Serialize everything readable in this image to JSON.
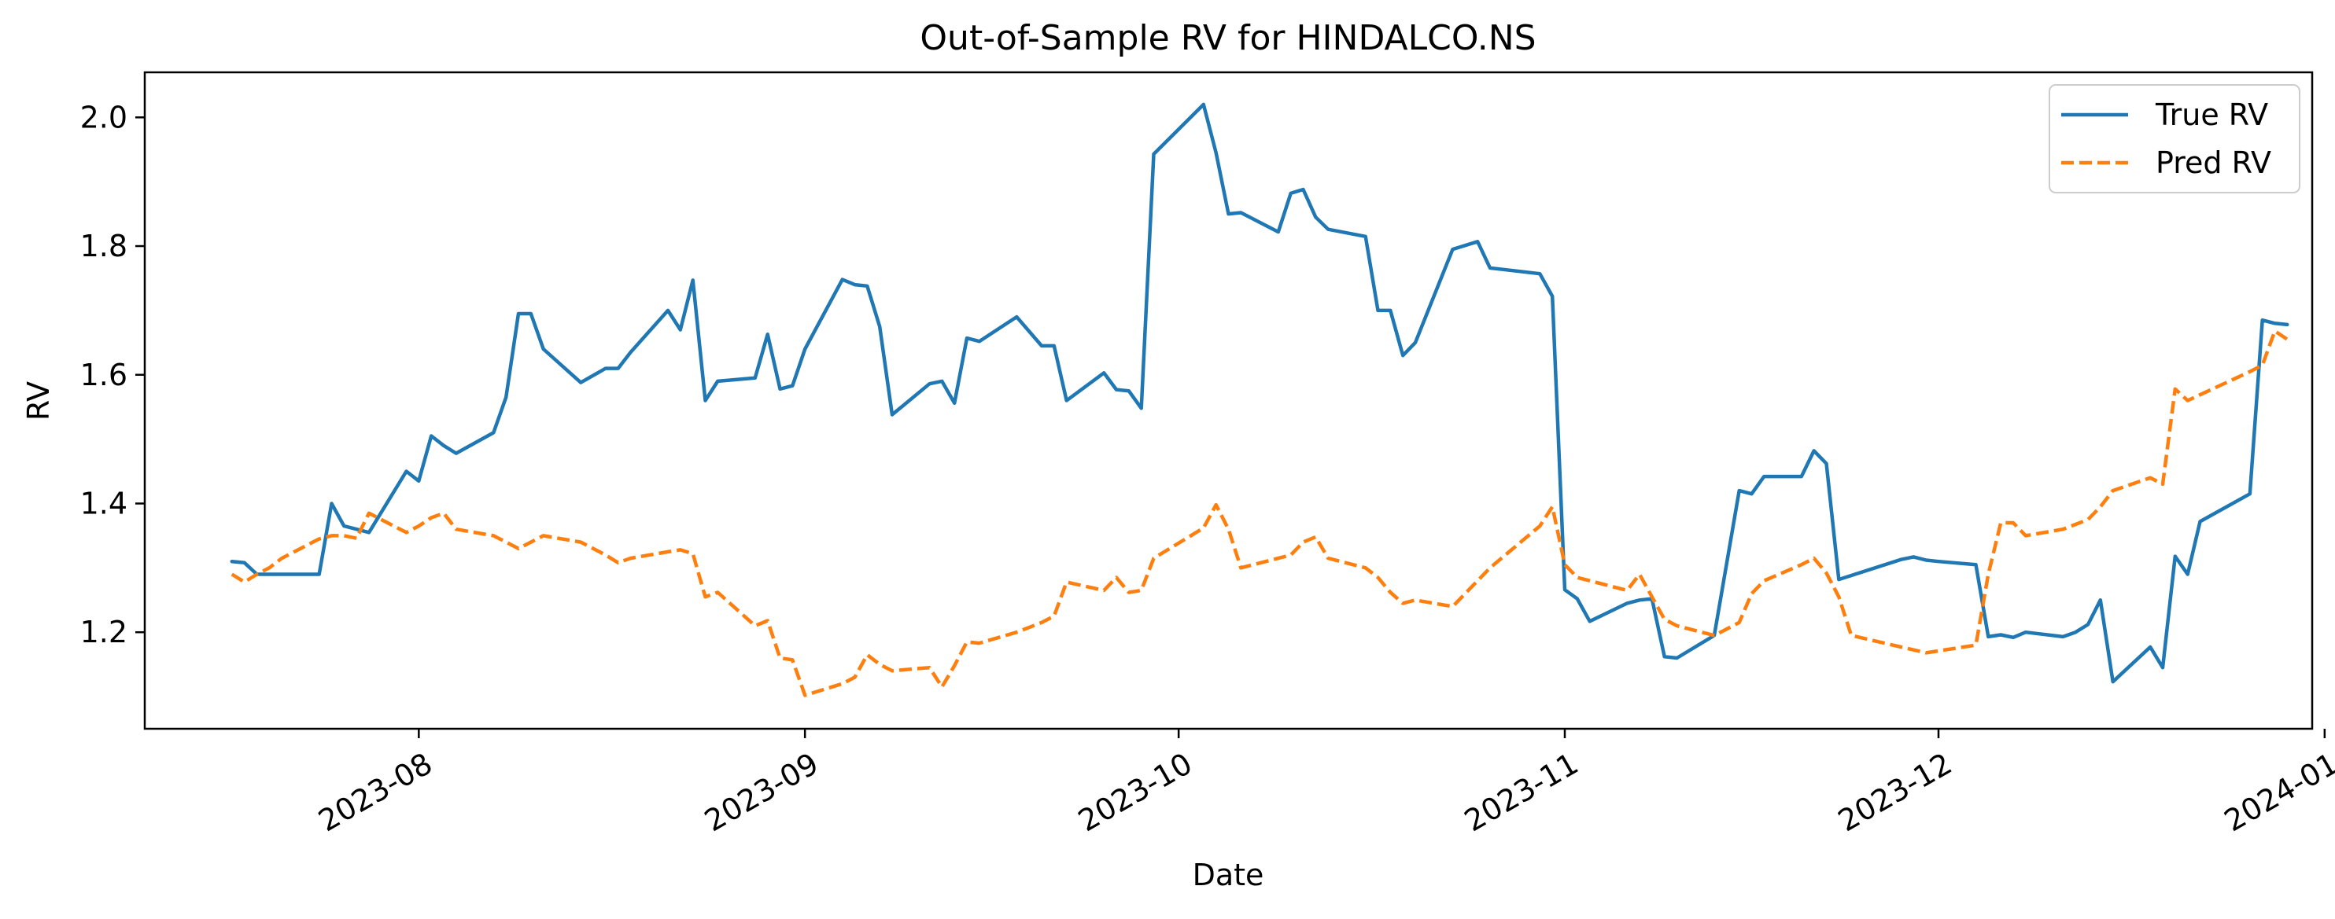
{
  "chart_data": {
    "type": "line",
    "title": "Out-of-Sample RV for HINDALCO.NS",
    "xlabel": "Date",
    "ylabel": "RV",
    "x_range": [
      "2023-07-10",
      "2023-12-31"
    ],
    "ylim": [
      1.05,
      2.07
    ],
    "x_ticks": [
      {
        "date": "2023-08-01",
        "label": "2023-08"
      },
      {
        "date": "2023-09-01",
        "label": "2023-09"
      },
      {
        "date": "2023-10-01",
        "label": "2023-10"
      },
      {
        "date": "2023-11-01",
        "label": "2023-11"
      },
      {
        "date": "2023-12-01",
        "label": "2023-12"
      },
      {
        "date": "2024-01-01",
        "label": "2024-01"
      }
    ],
    "y_ticks": [
      {
        "value": 1.2,
        "label": "1.2"
      },
      {
        "value": 1.4,
        "label": "1.4"
      },
      {
        "value": 1.6,
        "label": "1.6"
      },
      {
        "value": 1.8,
        "label": "1.8"
      },
      {
        "value": 2.0,
        "label": "2.0"
      }
    ],
    "grid": false,
    "legend_position": "top-right",
    "series": [
      {
        "name": "True RV",
        "color": "#1f77b4",
        "style": "solid",
        "points": [
          [
            "2023-07-17",
            1.31
          ],
          [
            "2023-07-18",
            1.308
          ],
          [
            "2023-07-19",
            1.29
          ],
          [
            "2023-07-20",
            1.29
          ],
          [
            "2023-07-21",
            1.29
          ],
          [
            "2023-07-24",
            1.29
          ],
          [
            "2023-07-25",
            1.4
          ],
          [
            "2023-07-26",
            1.365
          ],
          [
            "2023-07-27",
            1.36
          ],
          [
            "2023-07-28",
            1.355
          ],
          [
            "2023-07-31",
            1.45
          ],
          [
            "2023-08-01",
            1.435
          ],
          [
            "2023-08-02",
            1.505
          ],
          [
            "2023-08-03",
            1.49
          ],
          [
            "2023-08-04",
            1.478
          ],
          [
            "2023-08-07",
            1.51
          ],
          [
            "2023-08-08",
            1.565
          ],
          [
            "2023-08-09",
            1.695
          ],
          [
            "2023-08-10",
            1.695
          ],
          [
            "2023-08-11",
            1.64
          ],
          [
            "2023-08-14",
            1.588
          ],
          [
            "2023-08-16",
            1.61
          ],
          [
            "2023-08-17",
            1.61
          ],
          [
            "2023-08-18",
            1.635
          ],
          [
            "2023-08-21",
            1.7
          ],
          [
            "2023-08-22",
            1.67
          ],
          [
            "2023-08-23",
            1.747
          ],
          [
            "2023-08-24",
            1.56
          ],
          [
            "2023-08-25",
            1.59
          ],
          [
            "2023-08-28",
            1.595
          ],
          [
            "2023-08-29",
            1.663
          ],
          [
            "2023-08-30",
            1.578
          ],
          [
            "2023-08-31",
            1.583
          ],
          [
            "2023-09-01",
            1.64
          ],
          [
            "2023-09-04",
            1.748
          ],
          [
            "2023-09-05",
            1.74
          ],
          [
            "2023-09-06",
            1.738
          ],
          [
            "2023-09-07",
            1.675
          ],
          [
            "2023-09-08",
            1.538
          ],
          [
            "2023-09-11",
            1.586
          ],
          [
            "2023-09-12",
            1.59
          ],
          [
            "2023-09-13",
            1.556
          ],
          [
            "2023-09-14",
            1.657
          ],
          [
            "2023-09-15",
            1.652
          ],
          [
            "2023-09-18",
            1.69
          ],
          [
            "2023-09-20",
            1.645
          ],
          [
            "2023-09-21",
            1.645
          ],
          [
            "2023-09-22",
            1.56
          ],
          [
            "2023-09-25",
            1.603
          ],
          [
            "2023-09-26",
            1.577
          ],
          [
            "2023-09-27",
            1.575
          ],
          [
            "2023-09-28",
            1.548
          ],
          [
            "2023-09-29",
            1.943
          ],
          [
            "2023-10-03",
            2.02
          ],
          [
            "2023-10-04",
            1.945
          ],
          [
            "2023-10-05",
            1.85
          ],
          [
            "2023-10-06",
            1.852
          ],
          [
            "2023-10-09",
            1.822
          ],
          [
            "2023-10-10",
            1.882
          ],
          [
            "2023-10-11",
            1.888
          ],
          [
            "2023-10-12",
            1.845
          ],
          [
            "2023-10-13",
            1.826
          ],
          [
            "2023-10-16",
            1.815
          ],
          [
            "2023-10-17",
            1.7
          ],
          [
            "2023-10-18",
            1.7
          ],
          [
            "2023-10-19",
            1.63
          ],
          [
            "2023-10-20",
            1.65
          ],
          [
            "2023-10-23",
            1.795
          ],
          [
            "2023-10-25",
            1.807
          ],
          [
            "2023-10-26",
            1.766
          ],
          [
            "2023-10-30",
            1.757
          ],
          [
            "2023-10-31",
            1.722
          ],
          [
            "2023-11-01",
            1.266
          ],
          [
            "2023-11-02",
            1.252
          ],
          [
            "2023-11-03",
            1.217
          ],
          [
            "2023-11-06",
            1.245
          ],
          [
            "2023-11-07",
            1.25
          ],
          [
            "2023-11-08",
            1.252
          ],
          [
            "2023-11-09",
            1.162
          ],
          [
            "2023-11-10",
            1.16
          ],
          [
            "2023-11-13",
            1.195
          ],
          [
            "2023-11-15",
            1.42
          ],
          [
            "2023-11-16",
            1.415
          ],
          [
            "2023-11-17",
            1.442
          ],
          [
            "2023-11-20",
            1.442
          ],
          [
            "2023-11-21",
            1.482
          ],
          [
            "2023-11-22",
            1.462
          ],
          [
            "2023-11-23",
            1.282
          ],
          [
            "2023-11-28",
            1.313
          ],
          [
            "2023-11-29",
            1.317
          ],
          [
            "2023-11-30",
            1.312
          ],
          [
            "2023-12-01",
            1.31
          ],
          [
            "2023-12-04",
            1.305
          ],
          [
            "2023-12-05",
            1.193
          ],
          [
            "2023-12-06",
            1.196
          ],
          [
            "2023-12-07",
            1.192
          ],
          [
            "2023-12-08",
            1.2
          ],
          [
            "2023-12-11",
            1.193
          ],
          [
            "2023-12-12",
            1.2
          ],
          [
            "2023-12-13",
            1.212
          ],
          [
            "2023-12-14",
            1.25
          ],
          [
            "2023-12-15",
            1.123
          ],
          [
            "2023-12-18",
            1.177
          ],
          [
            "2023-12-19",
            1.145
          ],
          [
            "2023-12-20",
            1.318
          ],
          [
            "2023-12-21",
            1.29
          ],
          [
            "2023-12-22",
            1.372
          ],
          [
            "2023-12-26",
            1.415
          ],
          [
            "2023-12-27",
            1.685
          ],
          [
            "2023-12-28",
            1.68
          ],
          [
            "2023-12-29",
            1.678
          ]
        ]
      },
      {
        "name": "Pred RV",
        "color": "#ff7f0e",
        "style": "dashed",
        "points": [
          [
            "2023-07-17",
            1.29
          ],
          [
            "2023-07-18",
            1.278
          ],
          [
            "2023-07-19",
            1.29
          ],
          [
            "2023-07-20",
            1.3
          ],
          [
            "2023-07-21",
            1.315
          ],
          [
            "2023-07-24",
            1.345
          ],
          [
            "2023-07-25",
            1.35
          ],
          [
            "2023-07-26",
            1.35
          ],
          [
            "2023-07-27",
            1.346
          ],
          [
            "2023-07-28",
            1.385
          ],
          [
            "2023-07-31",
            1.355
          ],
          [
            "2023-08-01",
            1.365
          ],
          [
            "2023-08-02",
            1.378
          ],
          [
            "2023-08-03",
            1.385
          ],
          [
            "2023-08-04",
            1.36
          ],
          [
            "2023-08-07",
            1.35
          ],
          [
            "2023-08-08",
            1.34
          ],
          [
            "2023-08-09",
            1.33
          ],
          [
            "2023-08-10",
            1.34
          ],
          [
            "2023-08-11",
            1.35
          ],
          [
            "2023-08-14",
            1.34
          ],
          [
            "2023-08-16",
            1.32
          ],
          [
            "2023-08-17",
            1.308
          ],
          [
            "2023-08-18",
            1.315
          ],
          [
            "2023-08-21",
            1.325
          ],
          [
            "2023-08-22",
            1.328
          ],
          [
            "2023-08-23",
            1.322
          ],
          [
            "2023-08-24",
            1.255
          ],
          [
            "2023-08-25",
            1.262
          ],
          [
            "2023-08-28",
            1.21
          ],
          [
            "2023-08-29",
            1.218
          ],
          [
            "2023-08-30",
            1.16
          ],
          [
            "2023-08-31",
            1.157
          ],
          [
            "2023-09-01",
            1.102
          ],
          [
            "2023-09-04",
            1.12
          ],
          [
            "2023-09-05",
            1.13
          ],
          [
            "2023-09-06",
            1.165
          ],
          [
            "2023-09-07",
            1.15
          ],
          [
            "2023-09-08",
            1.14
          ],
          [
            "2023-09-11",
            1.145
          ],
          [
            "2023-09-12",
            1.115
          ],
          [
            "2023-09-13",
            1.148
          ],
          [
            "2023-09-14",
            1.185
          ],
          [
            "2023-09-15",
            1.183
          ],
          [
            "2023-09-18",
            1.2
          ],
          [
            "2023-09-20",
            1.215
          ],
          [
            "2023-09-21",
            1.225
          ],
          [
            "2023-09-22",
            1.278
          ],
          [
            "2023-09-25",
            1.265
          ],
          [
            "2023-09-26",
            1.285
          ],
          [
            "2023-09-27",
            1.262
          ],
          [
            "2023-09-28",
            1.265
          ],
          [
            "2023-09-29",
            1.315
          ],
          [
            "2023-10-03",
            1.362
          ],
          [
            "2023-10-04",
            1.398
          ],
          [
            "2023-10-05",
            1.36
          ],
          [
            "2023-10-06",
            1.3
          ],
          [
            "2023-10-09",
            1.315
          ],
          [
            "2023-10-10",
            1.32
          ],
          [
            "2023-10-11",
            1.34
          ],
          [
            "2023-10-12",
            1.348
          ],
          [
            "2023-10-13",
            1.315
          ],
          [
            "2023-10-16",
            1.3
          ],
          [
            "2023-10-17",
            1.285
          ],
          [
            "2023-10-18",
            1.262
          ],
          [
            "2023-10-19",
            1.245
          ],
          [
            "2023-10-20",
            1.25
          ],
          [
            "2023-10-23",
            1.24
          ],
          [
            "2023-10-25",
            1.28
          ],
          [
            "2023-10-26",
            1.3
          ],
          [
            "2023-10-30",
            1.365
          ],
          [
            "2023-10-31",
            1.395
          ],
          [
            "2023-11-01",
            1.305
          ],
          [
            "2023-11-02",
            1.285
          ],
          [
            "2023-11-03",
            1.28
          ],
          [
            "2023-11-06",
            1.265
          ],
          [
            "2023-11-07",
            1.29
          ],
          [
            "2023-11-08",
            1.255
          ],
          [
            "2023-11-09",
            1.22
          ],
          [
            "2023-11-10",
            1.21
          ],
          [
            "2023-11-13",
            1.195
          ],
          [
            "2023-11-15",
            1.215
          ],
          [
            "2023-11-16",
            1.26
          ],
          [
            "2023-11-17",
            1.28
          ],
          [
            "2023-11-20",
            1.305
          ],
          [
            "2023-11-21",
            1.315
          ],
          [
            "2023-11-22",
            1.292
          ],
          [
            "2023-11-23",
            1.255
          ],
          [
            "2023-11-24",
            1.195
          ],
          [
            "2023-11-30",
            1.168
          ],
          [
            "2023-12-04",
            1.18
          ],
          [
            "2023-12-05",
            1.29
          ],
          [
            "2023-12-06",
            1.37
          ],
          [
            "2023-12-07",
            1.37
          ],
          [
            "2023-12-08",
            1.35
          ],
          [
            "2023-12-11",
            1.36
          ],
          [
            "2023-12-13",
            1.375
          ],
          [
            "2023-12-14",
            1.395
          ],
          [
            "2023-12-15",
            1.42
          ],
          [
            "2023-12-18",
            1.44
          ],
          [
            "2023-12-19",
            1.43
          ],
          [
            "2023-12-20",
            1.578
          ],
          [
            "2023-12-21",
            1.56
          ],
          [
            "2023-12-26",
            1.605
          ],
          [
            "2023-12-27",
            1.615
          ],
          [
            "2023-12-28",
            1.668
          ],
          [
            "2023-12-29",
            1.655
          ]
        ]
      }
    ]
  }
}
